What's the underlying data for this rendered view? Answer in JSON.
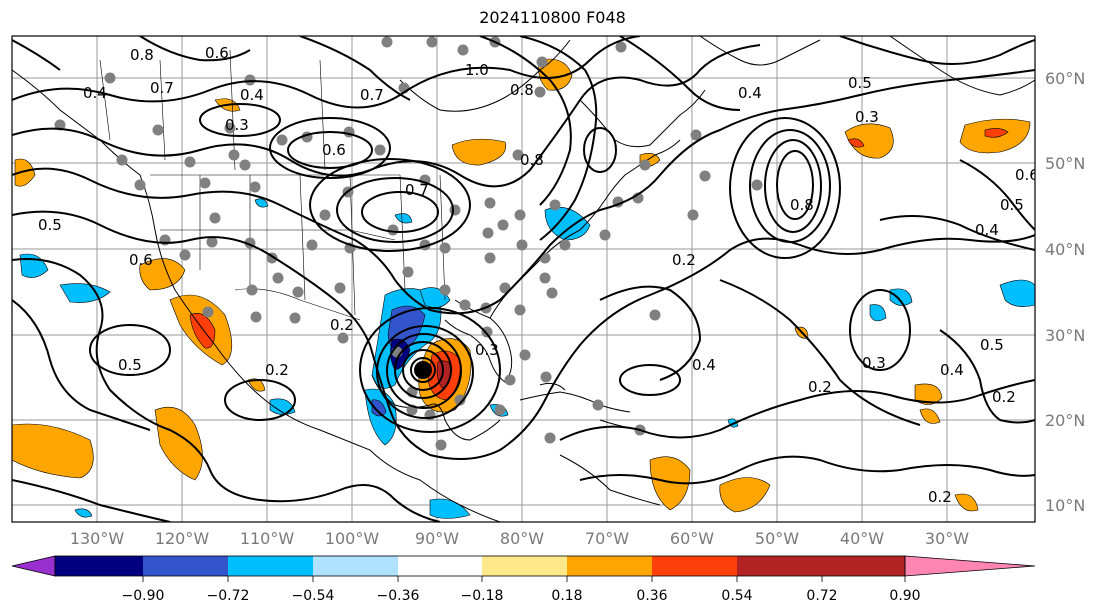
{
  "title": "2024110800 F048",
  "map": {
    "lat_ticks": [
      "60°N",
      "50°N",
      "40°N",
      "30°N",
      "20°N",
      "10°N"
    ],
    "lon_ticks": [
      "130°W",
      "120°W",
      "110°W",
      "100°W",
      "90°W",
      "80°W",
      "70°W",
      "60°W",
      "50°W",
      "40°W",
      "30°W"
    ],
    "contour_labels": [
      "0.8",
      "0.6",
      "0.7",
      "0.4",
      "0.4",
      "1.0",
      "0.8",
      "0.3",
      "0.6",
      "0.7",
      "0.8",
      "0.4",
      "0.5",
      "0.6",
      "0.5",
      "0.3",
      "0.7",
      "0.5",
      "0.2",
      "0.4",
      "0.6",
      "0.8",
      "0.2",
      "0.5",
      "0.2",
      "0.3",
      "0.4",
      "0.2",
      "0.4",
      "0.5",
      "0.3",
      "0.2",
      "0.2"
    ],
    "cyclone_marker": "hurricane-center"
  },
  "colorbar": {
    "ticks": [
      "−0.90",
      "−0.72",
      "−0.54",
      "−0.36",
      "−0.18",
      "0.18",
      "0.36",
      "0.54",
      "0.72",
      "0.90"
    ],
    "colors": [
      "#9a2fd0",
      "#000080",
      "#3355cc",
      "#00bfff",
      "#aee2ff",
      "#ffffff",
      "#ffe88a",
      "#ffa500",
      "#ff3f0a",
      "#b22222",
      "#ff85b3"
    ]
  }
}
